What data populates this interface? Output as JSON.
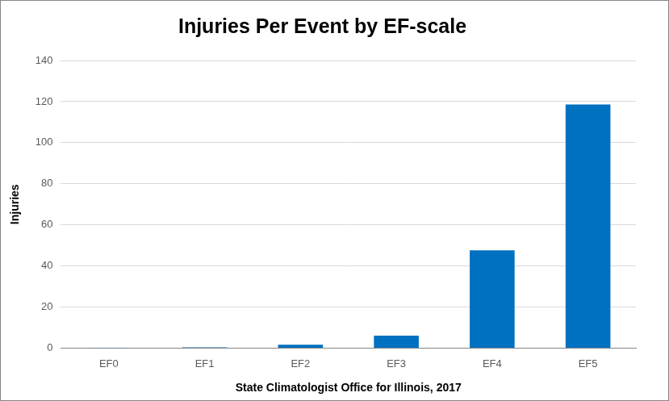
{
  "chart_data": {
    "type": "bar",
    "title": "Injuries Per Event by EF-scale",
    "xlabel": "State Climatologist Office for Illinois, 2017",
    "ylabel": "Injuries",
    "categories": [
      "EF0",
      "EF1",
      "EF2",
      "EF3",
      "EF4",
      "EF5"
    ],
    "values": [
      0.1,
      0.4,
      1.7,
      6.1,
      47.6,
      118.6
    ],
    "color": "#0070c0",
    "ylim": [
      0,
      140
    ],
    "yticks": [
      0,
      20,
      40,
      60,
      80,
      100,
      120,
      140
    ],
    "grid": true
  }
}
